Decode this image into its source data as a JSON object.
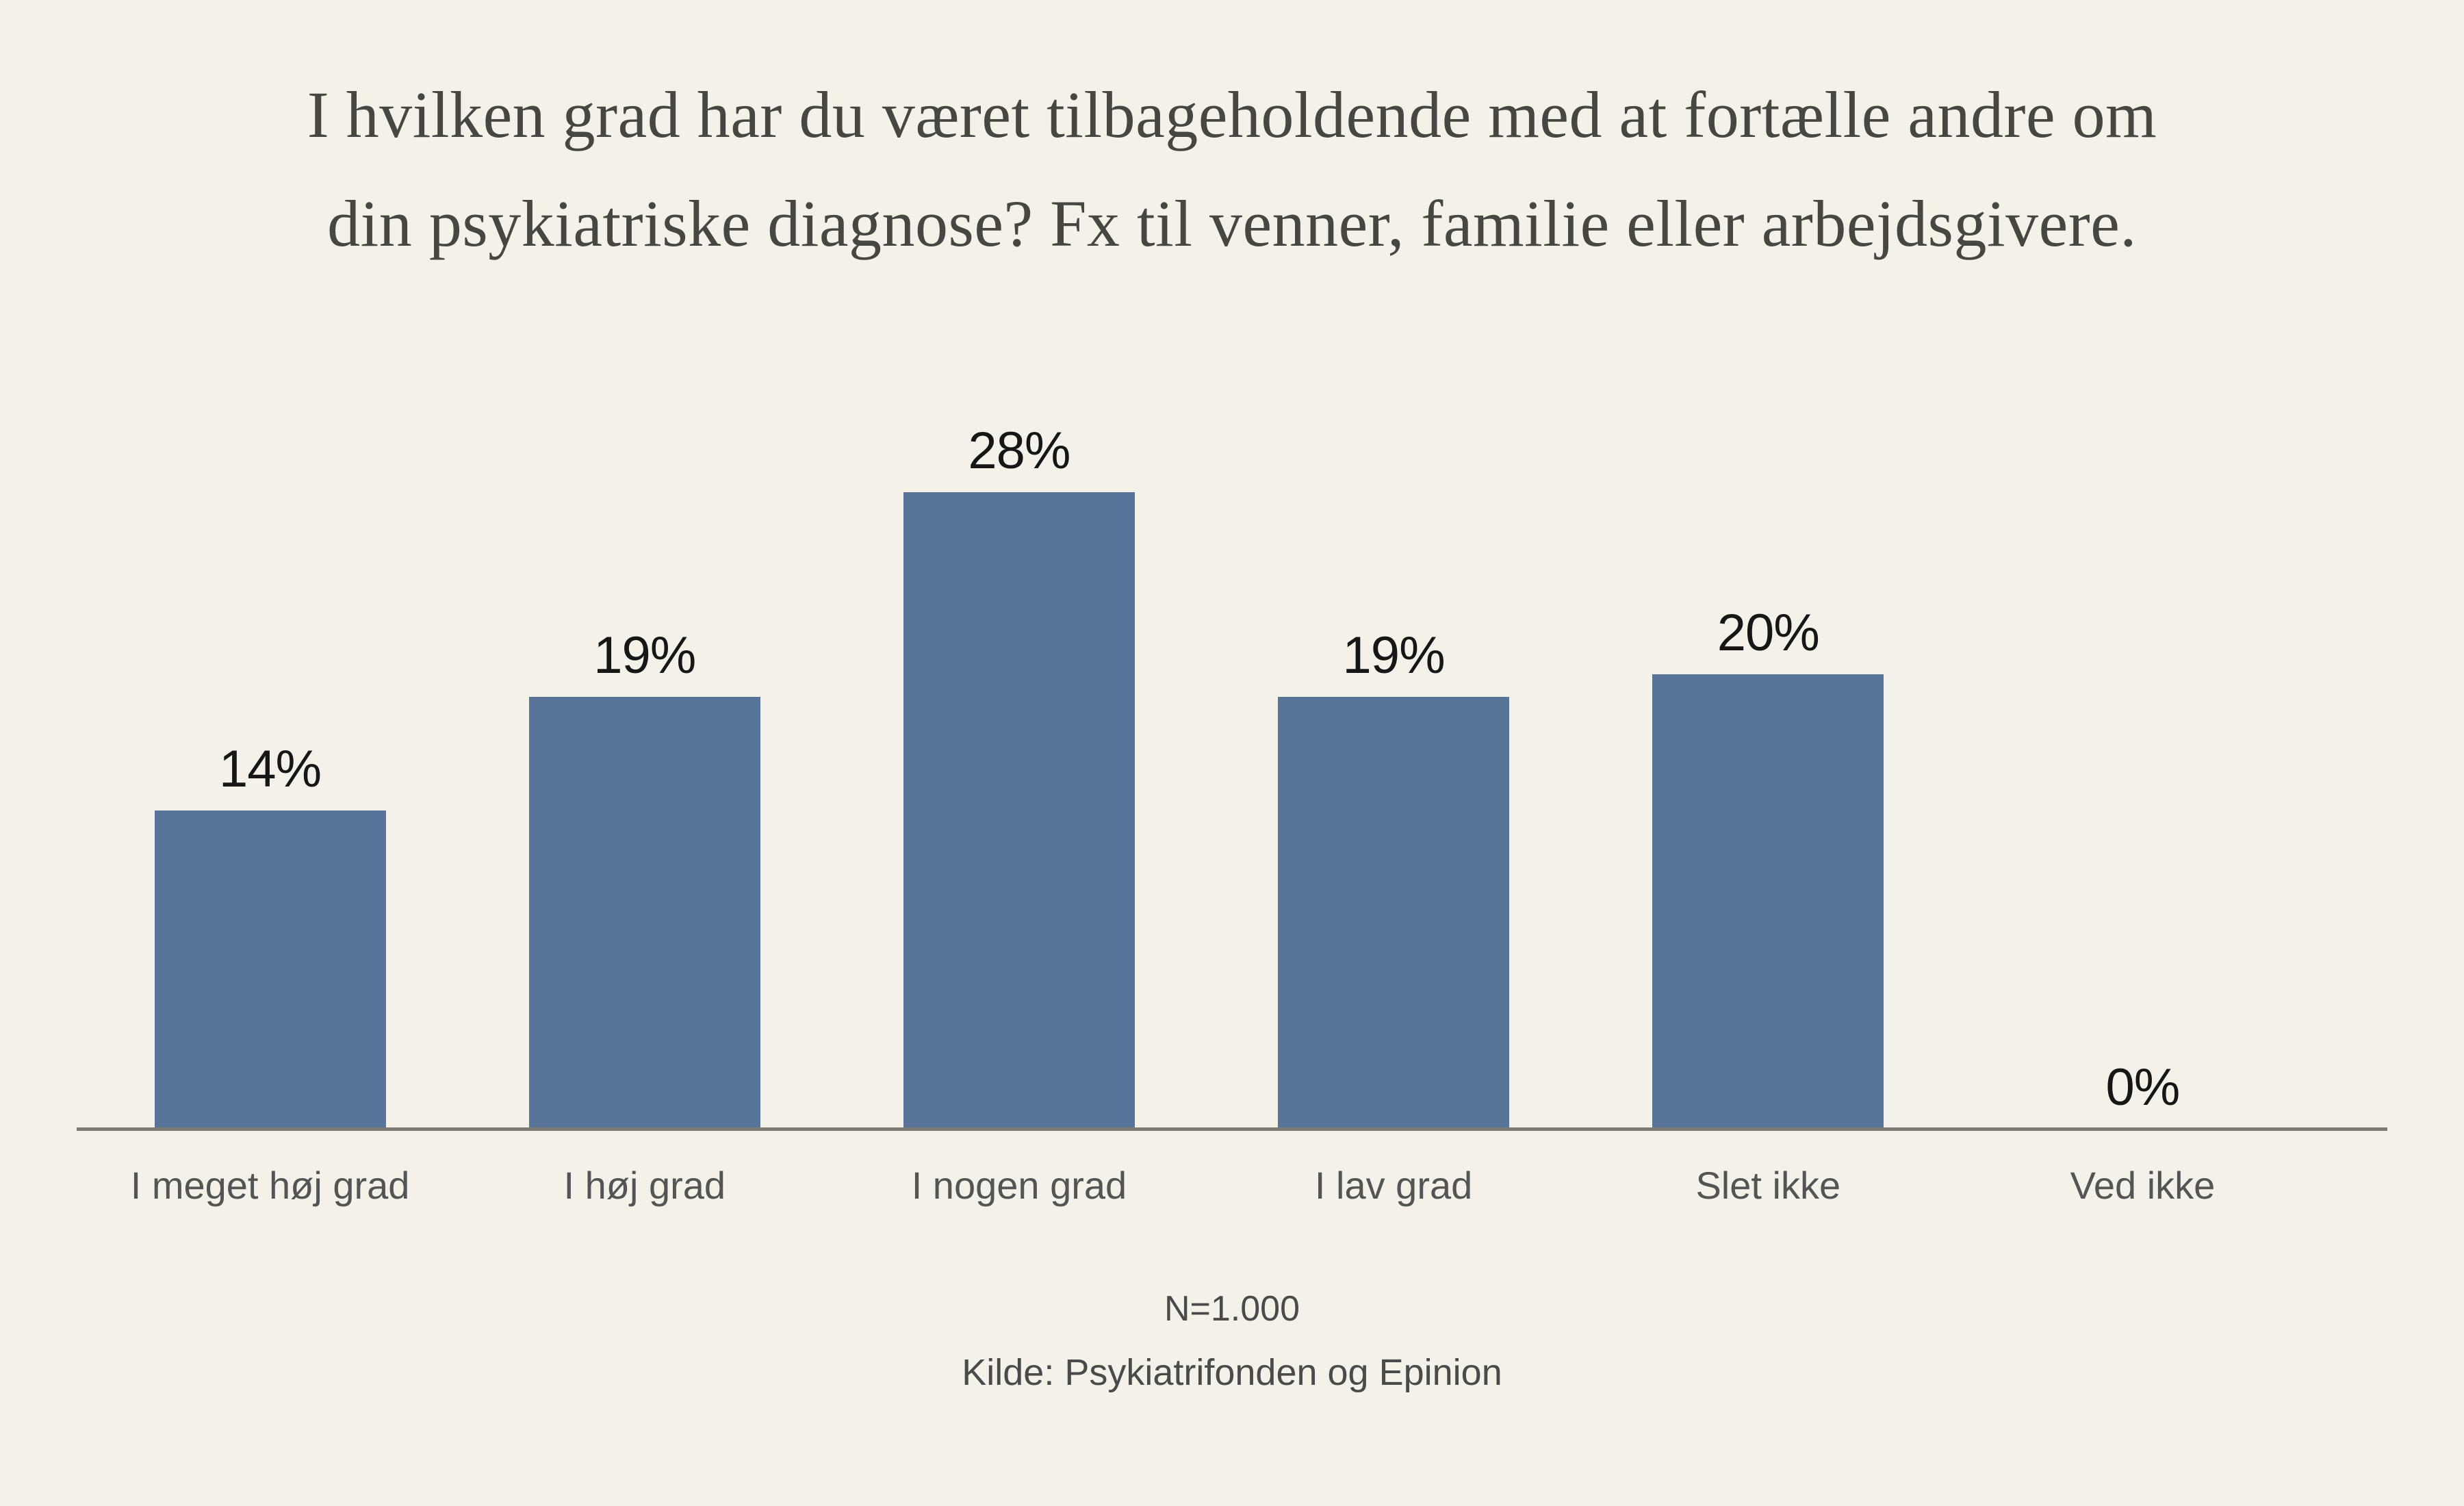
{
  "title": {
    "line1": "I hvilken grad har du været tilbageholdende med at fortælle andre om",
    "line2": "din psykiatriske diagnose? Fx til venner, familie eller arbejdsgivere."
  },
  "chart_data": {
    "type": "bar",
    "title": "I hvilken grad har du været tilbageholdende med at fortælle andre om din psykiatriske diagnose? Fx til venner, familie eller arbejdsgivere.",
    "categories": [
      "I meget høj grad",
      "I høj grad",
      "I nogen grad",
      "I lav grad",
      "Slet ikke",
      "Ved ikke"
    ],
    "values": [
      14,
      19,
      28,
      19,
      20,
      0
    ],
    "value_labels": [
      "14%",
      "19%",
      "28%",
      "19%",
      "20%",
      "0%"
    ],
    "xlabel": "",
    "ylabel": "",
    "ylim": [
      0,
      30
    ],
    "grid": false,
    "legend": false,
    "value_labels_position": "above-bars",
    "baseline_axis": true
  },
  "footer": {
    "n_label": "N=1.000",
    "source_label": "Kilde: Psykiatrifonden og Epinion"
  },
  "colors": {
    "background": "#f3f1e8",
    "bar": "#587498",
    "title_text": "#474642",
    "category_text": "#545454",
    "value_text": "#161616",
    "axis_line": "#7c7b73",
    "footer_text": "#4a4a4a"
  }
}
